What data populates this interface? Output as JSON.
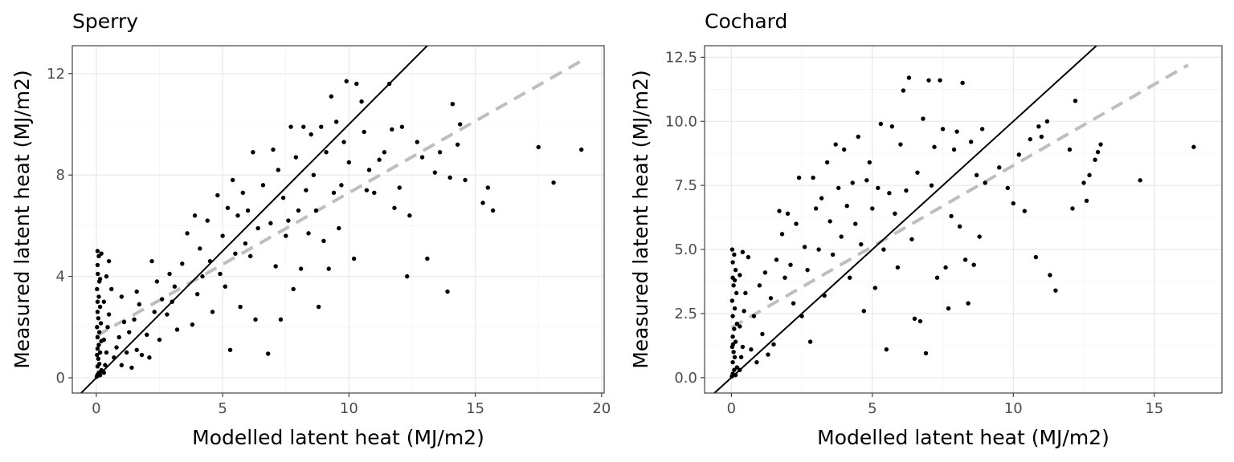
{
  "chart_data": [
    {
      "type": "scatter",
      "title": "Sperry",
      "xlabel": "Modelled latent heat (MJ/m2)",
      "ylabel": "Measured latent heat (MJ/m2)",
      "xlim": [
        -0.95,
        20.1
      ],
      "ylim": [
        -0.6,
        13.1
      ],
      "xticks": [
        0,
        5,
        10,
        15,
        20
      ],
      "yticks": [
        0,
        4,
        8,
        12
      ],
      "grid": true,
      "identity_line": {
        "slope": 1,
        "intercept": 0,
        "color": "#000000"
      },
      "regression_line": {
        "x": [
          0,
          19.2
        ],
        "y": [
          1.65,
          12.5
        ],
        "color": "#bebebe",
        "style": "dashed"
      },
      "points": [
        [
          0.02,
          0.05
        ],
        [
          0.05,
          0.12
        ],
        [
          0.1,
          0.2
        ],
        [
          0.15,
          0.1
        ],
        [
          0.2,
          0.3
        ],
        [
          0.05,
          0.45
        ],
        [
          0.12,
          0.55
        ],
        [
          0.08,
          0.75
        ],
        [
          0.03,
          0.9
        ],
        [
          0.15,
          1.0
        ],
        [
          0.05,
          1.15
        ],
        [
          0.1,
          1.3
        ],
        [
          0.2,
          1.45
        ],
        [
          0.05,
          1.6
        ],
        [
          0.12,
          1.8
        ],
        [
          0.03,
          2.0
        ],
        [
          0.18,
          2.15
        ],
        [
          0.08,
          2.35
        ],
        [
          0.05,
          2.6
        ],
        [
          0.15,
          2.8
        ],
        [
          0.05,
          3.0
        ],
        [
          0.1,
          3.2
        ],
        [
          0.03,
          3.5
        ],
        [
          0.12,
          3.8
        ],
        [
          0.06,
          4.1
        ],
        [
          0.05,
          4.45
        ],
        [
          0.1,
          4.8
        ],
        [
          0.05,
          5.0
        ],
        [
          0.2,
          4.9
        ],
        [
          0.15,
          3.9
        ],
        [
          0.3,
          0.2
        ],
        [
          0.35,
          0.5
        ],
        [
          0.4,
          1.0
        ],
        [
          0.3,
          1.5
        ],
        [
          0.45,
          2.0
        ],
        [
          0.5,
          2.5
        ],
        [
          0.3,
          3.0
        ],
        [
          0.6,
          3.5
        ],
        [
          0.4,
          4.0
        ],
        [
          0.5,
          4.6
        ],
        [
          0.7,
          0.8
        ],
        [
          0.8,
          1.2
        ],
        [
          0.9,
          1.6
        ],
        [
          1.0,
          0.5
        ],
        [
          1.1,
          2.2
        ],
        [
          1.2,
          1.0
        ],
        [
          1.0,
          3.2
        ],
        [
          1.3,
          1.8
        ],
        [
          1.5,
          2.3
        ],
        [
          1.4,
          0.4
        ],
        [
          1.6,
          1.1
        ],
        [
          1.7,
          2.9
        ],
        [
          1.8,
          0.9
        ],
        [
          1.6,
          3.4
        ],
        [
          2.0,
          1.7
        ],
        [
          2.1,
          0.8
        ],
        [
          2.2,
          4.6
        ],
        [
          2.3,
          2.6
        ],
        [
          2.5,
          1.5
        ],
        [
          2.6,
          3.1
        ],
        [
          2.4,
          3.8
        ],
        [
          2.8,
          2.5
        ],
        [
          2.9,
          4.1
        ],
        [
          3.0,
          3.0
        ],
        [
          3.2,
          1.9
        ],
        [
          3.4,
          4.5
        ],
        [
          3.1,
          3.6
        ],
        [
          3.6,
          5.7
        ],
        [
          3.8,
          2.1
        ],
        [
          3.9,
          6.4
        ],
        [
          4.0,
          3.3
        ],
        [
          4.1,
          5.1
        ],
        [
          4.2,
          4.0
        ],
        [
          4.4,
          6.2
        ],
        [
          4.5,
          4.6
        ],
        [
          4.6,
          2.6
        ],
        [
          4.8,
          7.2
        ],
        [
          4.9,
          4.1
        ],
        [
          5.0,
          5.6
        ],
        [
          5.1,
          3.6
        ],
        [
          5.2,
          6.7
        ],
        [
          5.3,
          1.1
        ],
        [
          5.4,
          7.8
        ],
        [
          5.5,
          4.9
        ],
        [
          5.6,
          6.4
        ],
        [
          5.7,
          2.8
        ],
        [
          5.8,
          7.3
        ],
        [
          5.9,
          5.3
        ],
        [
          6.0,
          6.6
        ],
        [
          6.1,
          4.8
        ],
        [
          6.2,
          8.9
        ],
        [
          6.3,
          2.3
        ],
        [
          6.4,
          5.9
        ],
        [
          6.6,
          7.6
        ],
        [
          6.8,
          0.95
        ],
        [
          6.9,
          6.1
        ],
        [
          7.0,
          9.0
        ],
        [
          7.1,
          4.4
        ],
        [
          7.2,
          8.2
        ],
        [
          7.3,
          2.3
        ],
        [
          7.4,
          7.1
        ],
        [
          7.5,
          5.6
        ],
        [
          7.6,
          6.2
        ],
        [
          7.7,
          9.9
        ],
        [
          7.8,
          3.5
        ],
        [
          7.9,
          8.7
        ],
        [
          8.0,
          6.6
        ],
        [
          8.1,
          4.3
        ],
        [
          8.2,
          9.9
        ],
        [
          8.3,
          7.4
        ],
        [
          8.4,
          5.7
        ],
        [
          8.5,
          9.6
        ],
        [
          8.6,
          8.0
        ],
        [
          8.7,
          6.6
        ],
        [
          8.8,
          2.8
        ],
        [
          8.9,
          9.9
        ],
        [
          9.0,
          5.4
        ],
        [
          9.1,
          8.9
        ],
        [
          9.2,
          4.3
        ],
        [
          9.3,
          11.1
        ],
        [
          9.4,
          7.3
        ],
        [
          9.5,
          10.1
        ],
        [
          9.6,
          5.9
        ],
        [
          9.7,
          7.6
        ],
        [
          9.8,
          9.3
        ],
        [
          9.9,
          11.7
        ],
        [
          10.0,
          8.5
        ],
        [
          10.2,
          4.7
        ],
        [
          10.3,
          11.6
        ],
        [
          10.5,
          10.9
        ],
        [
          10.6,
          9.7
        ],
        [
          10.7,
          7.4
        ],
        [
          10.8,
          8.2
        ],
        [
          11.0,
          7.3
        ],
        [
          11.2,
          8.6
        ],
        [
          11.4,
          8.9
        ],
        [
          11.6,
          11.6
        ],
        [
          11.7,
          9.8
        ],
        [
          11.8,
          6.7
        ],
        [
          12.0,
          7.5
        ],
        [
          12.1,
          9.9
        ],
        [
          12.3,
          4.0
        ],
        [
          12.4,
          6.4
        ],
        [
          12.7,
          9.3
        ],
        [
          12.9,
          8.7
        ],
        [
          13.1,
          4.7
        ],
        [
          13.4,
          8.1
        ],
        [
          13.6,
          8.9
        ],
        [
          13.9,
          3.4
        ],
        [
          14.1,
          10.8
        ],
        [
          14.0,
          7.9
        ],
        [
          14.3,
          9.2
        ],
        [
          14.4,
          10.0
        ],
        [
          14.6,
          7.8
        ],
        [
          15.3,
          6.9
        ],
        [
          15.5,
          7.5
        ],
        [
          15.7,
          6.6
        ],
        [
          17.5,
          9.1
        ],
        [
          18.1,
          7.7
        ],
        [
          19.2,
          9.0
        ]
      ]
    },
    {
      "type": "scatter",
      "title": "Cochard",
      "xlabel": "Modelled latent heat (MJ/m2)",
      "ylabel": "Measured latent heat (MJ/m2)",
      "xlim": [
        -0.95,
        17.4
      ],
      "ylim": [
        -0.6,
        12.95
      ],
      "xticks": [
        0,
        5,
        10,
        15
      ],
      "yticks": [
        0.0,
        2.5,
        5.0,
        7.5,
        10.0,
        12.5
      ],
      "ytick_labels": [
        "0.0",
        "2.5",
        "5.0",
        "7.5",
        "10.0",
        "12.5"
      ],
      "grid": true,
      "identity_line": {
        "slope": 1,
        "intercept": 0,
        "color": "#000000"
      },
      "regression_line": {
        "x": [
          0,
          16.2
        ],
        "y": [
          1.95,
          12.2
        ],
        "color": "#bebebe",
        "style": "dashed"
      },
      "points": [
        [
          0.02,
          0.05
        ],
        [
          0.05,
          0.15
        ],
        [
          0.1,
          0.3
        ],
        [
          0.15,
          0.1
        ],
        [
          0.2,
          0.4
        ],
        [
          0.05,
          0.6
        ],
        [
          0.12,
          0.8
        ],
        [
          0.08,
          1.0
        ],
        [
          0.03,
          1.2
        ],
        [
          0.15,
          1.4
        ],
        [
          0.05,
          1.6
        ],
        [
          0.1,
          1.9
        ],
        [
          0.2,
          2.1
        ],
        [
          0.05,
          2.4
        ],
        [
          0.12,
          2.7
        ],
        [
          0.03,
          3.0
        ],
        [
          0.18,
          3.3
        ],
        [
          0.08,
          3.6
        ],
        [
          0.05,
          3.9
        ],
        [
          0.15,
          4.2
        ],
        [
          0.05,
          4.5
        ],
        [
          0.1,
          4.8
        ],
        [
          0.03,
          5.0
        ],
        [
          0.12,
          3.8
        ],
        [
          0.06,
          1.3
        ],
        [
          0.3,
          0.3
        ],
        [
          0.35,
          0.8
        ],
        [
          0.4,
          1.2
        ],
        [
          0.3,
          2.0
        ],
        [
          0.45,
          2.6
        ],
        [
          0.5,
          3.3
        ],
        [
          0.3,
          4.0
        ],
        [
          0.6,
          4.7
        ],
        [
          0.4,
          4.9
        ],
        [
          0.7,
          1.1
        ],
        [
          0.8,
          2.4
        ],
        [
          0.9,
          0.6
        ],
        [
          1.0,
          3.6
        ],
        [
          1.1,
          1.7
        ],
        [
          1.2,
          4.1
        ],
        [
          1.3,
          0.9
        ],
        [
          1.4,
          3.1
        ],
        [
          1.5,
          1.3
        ],
        [
          1.6,
          4.6
        ],
        [
          1.7,
          6.5
        ],
        [
          1.8,
          5.6
        ],
        [
          1.9,
          3.9
        ],
        [
          2.0,
          6.4
        ],
        [
          2.1,
          4.4
        ],
        [
          2.2,
          2.9
        ],
        [
          2.3,
          6.0
        ],
        [
          2.4,
          7.8
        ],
        [
          2.5,
          2.4
        ],
        [
          2.6,
          5.1
        ],
        [
          2.7,
          4.2
        ],
        [
          2.8,
          1.4
        ],
        [
          2.9,
          7.8
        ],
        [
          3.0,
          6.6
        ],
        [
          3.1,
          5.0
        ],
        [
          3.2,
          7.0
        ],
        [
          3.3,
          3.2
        ],
        [
          3.4,
          8.4
        ],
        [
          3.5,
          6.1
        ],
        [
          3.6,
          4.8
        ],
        [
          3.7,
          9.1
        ],
        [
          3.8,
          7.4
        ],
        [
          3.9,
          5.5
        ],
        [
          4.0,
          8.9
        ],
        [
          4.1,
          6.7
        ],
        [
          4.2,
          3.9
        ],
        [
          4.3,
          7.6
        ],
        [
          4.4,
          6.0
        ],
        [
          4.5,
          9.4
        ],
        [
          4.6,
          5.2
        ],
        [
          4.7,
          2.6
        ],
        [
          4.8,
          7.7
        ],
        [
          4.9,
          8.4
        ],
        [
          5.0,
          6.6
        ],
        [
          5.1,
          3.5
        ],
        [
          5.2,
          7.4
        ],
        [
          5.3,
          9.9
        ],
        [
          5.4,
          5.0
        ],
        [
          5.5,
          1.1
        ],
        [
          5.6,
          7.2
        ],
        [
          5.7,
          9.8
        ],
        [
          5.8,
          6.4
        ],
        [
          5.9,
          4.3
        ],
        [
          6.0,
          9.1
        ],
        [
          6.1,
          11.2
        ],
        [
          6.2,
          7.3
        ],
        [
          6.3,
          11.7
        ],
        [
          6.4,
          5.4
        ],
        [
          6.5,
          2.3
        ],
        [
          6.6,
          8.0
        ],
        [
          6.7,
          2.2
        ],
        [
          6.8,
          10.1
        ],
        [
          6.9,
          0.95
        ],
        [
          7.0,
          11.6
        ],
        [
          7.1,
          7.5
        ],
        [
          7.2,
          9.0
        ],
        [
          7.3,
          3.9
        ],
        [
          7.4,
          11.6
        ],
        [
          7.5,
          9.7
        ],
        [
          7.6,
          4.3
        ],
        [
          7.7,
          2.7
        ],
        [
          7.8,
          6.3
        ],
        [
          7.9,
          8.9
        ],
        [
          8.0,
          9.6
        ],
        [
          8.1,
          5.9
        ],
        [
          8.2,
          11.5
        ],
        [
          8.3,
          4.6
        ],
        [
          8.4,
          2.9
        ],
        [
          8.5,
          9.2
        ],
        [
          8.6,
          4.4
        ],
        [
          8.7,
          7.9
        ],
        [
          8.8,
          5.5
        ],
        [
          8.9,
          9.7
        ],
        [
          9.0,
          7.6
        ],
        [
          9.5,
          8.2
        ],
        [
          9.8,
          7.4
        ],
        [
          10.0,
          6.8
        ],
        [
          10.2,
          8.7
        ],
        [
          10.4,
          6.5
        ],
        [
          10.6,
          9.3
        ],
        [
          10.8,
          4.7
        ],
        [
          10.9,
          9.8
        ],
        [
          11.0,
          9.4
        ],
        [
          11.2,
          10.0
        ],
        [
          11.3,
          4.0
        ],
        [
          11.5,
          3.4
        ],
        [
          12.0,
          8.9
        ],
        [
          12.1,
          6.6
        ],
        [
          12.2,
          10.8
        ],
        [
          12.5,
          7.6
        ],
        [
          12.6,
          6.9
        ],
        [
          12.7,
          7.9
        ],
        [
          12.9,
          8.5
        ],
        [
          13.0,
          8.8
        ],
        [
          13.1,
          9.1
        ],
        [
          14.5,
          7.7
        ],
        [
          16.4,
          9.0
        ]
      ]
    }
  ]
}
